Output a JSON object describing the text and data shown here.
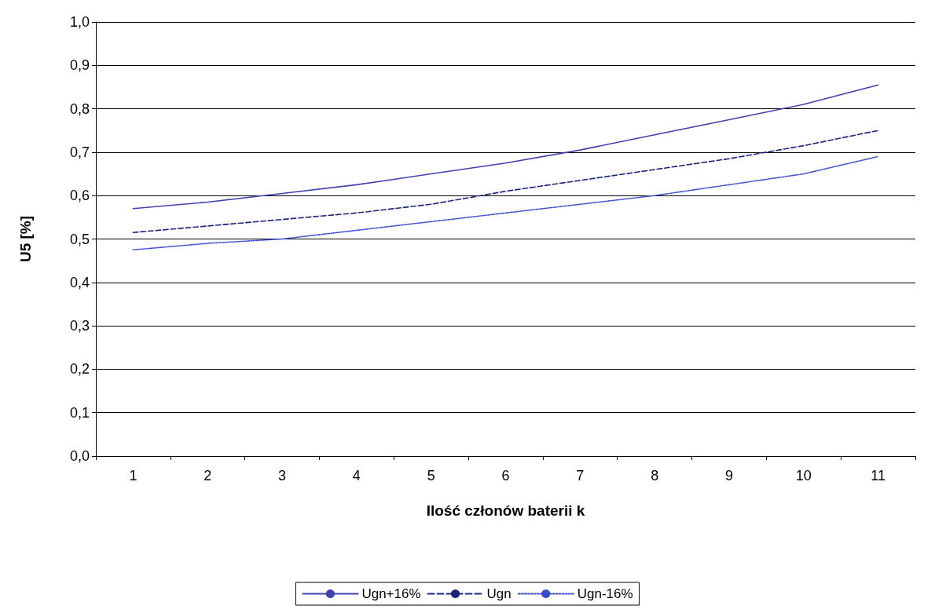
{
  "chart_data": {
    "type": "line",
    "xlabel": "Ilość członów baterii k",
    "ylabel": "U5 [%]",
    "categories": [
      "1",
      "2",
      "3",
      "4",
      "5",
      "6",
      "7",
      "8",
      "9",
      "10",
      "11"
    ],
    "series": [
      {
        "name": "Ugn+16%",
        "color": "#4040b0",
        "line_style": "solid",
        "values": [
          0.57,
          0.585,
          0.605,
          0.625,
          0.65,
          0.675,
          0.705,
          0.74,
          0.775,
          0.81,
          0.855
        ]
      },
      {
        "name": "Ugn",
        "color": "#1a237e",
        "line_style": "dashed",
        "values": [
          0.515,
          0.53,
          0.545,
          0.56,
          0.58,
          0.61,
          0.635,
          0.66,
          0.685,
          0.715,
          0.75
        ]
      },
      {
        "name": "Ugn-16%",
        "color": "#3a4bd0",
        "line_style": "dotted",
        "values": [
          0.475,
          0.49,
          0.5,
          0.52,
          0.54,
          0.56,
          0.58,
          0.6,
          0.625,
          0.65,
          0.69
        ]
      }
    ],
    "ylim": [
      0,
      1
    ],
    "yticks": [
      {
        "value": 0,
        "label": "0,0"
      },
      {
        "value": 0.1,
        "label": "0,1"
      },
      {
        "value": 0.2,
        "label": "0,2"
      },
      {
        "value": 0.3,
        "label": "0,3"
      },
      {
        "value": 0.4,
        "label": "0,4"
      },
      {
        "value": 0.5,
        "label": "0,5"
      },
      {
        "value": 0.6,
        "label": "0,6"
      },
      {
        "value": 0.7,
        "label": "0,7"
      },
      {
        "value": 0.8,
        "label": "0,8"
      },
      {
        "value": 0.9,
        "label": "0,9"
      },
      {
        "value": 1,
        "label": "1,0"
      }
    ],
    "grid": "y",
    "legend": "bottom",
    "marker": "none"
  }
}
